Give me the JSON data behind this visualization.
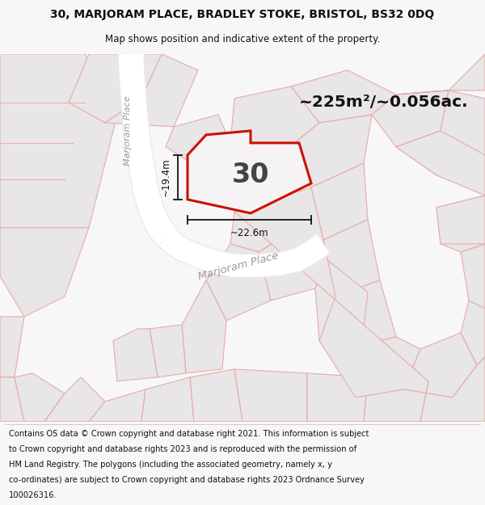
{
  "title_line1": "30, MARJORAM PLACE, BRADLEY STOKE, BRISTOL, BS32 0DQ",
  "title_line2": "Map shows position and indicative extent of the property.",
  "footer_lines": [
    "Contains OS data © Crown copyright and database right 2021. This information is subject",
    "to Crown copyright and database rights 2023 and is reproduced with the permission of",
    "HM Land Registry. The polygons (including the associated geometry, namely x, y",
    "co-ordinates) are subject to Crown copyright and database rights 2023 Ordnance Survey",
    "100026316."
  ],
  "area_label": "~225m²/~0.056ac.",
  "property_number": "30",
  "dim_vertical": "~19.4m",
  "dim_horizontal": "~22.6m",
  "street_label_bottom": "Marjoram Place",
  "street_label_left": "Marjoram Place",
  "map_bg": "#f2f0f0",
  "parcel_fill": "#e8e6e6",
  "parcel_edge": "#e8aaaa",
  "road_white": "#ffffff",
  "prop_fill": "#f5f3f3",
  "prop_edge": "#cc1100",
  "dim_color": "#111111",
  "label_color": "#333333",
  "street_color": "#999999"
}
